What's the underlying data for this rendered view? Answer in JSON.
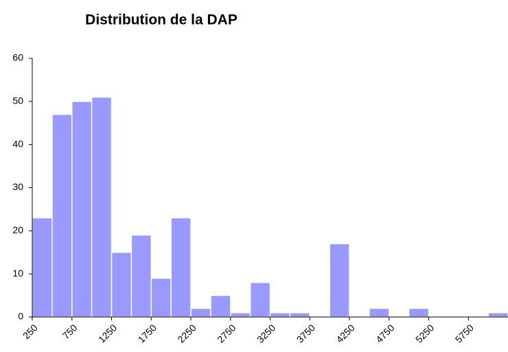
{
  "chart_data": {
    "type": "histogram",
    "title": "Distribution de la DAP",
    "bins": [
      250,
      500,
      750,
      1000,
      1250,
      1500,
      1750,
      2000,
      2250,
      2500,
      2750,
      3000,
      3250,
      3500,
      3750,
      4000,
      4250,
      4500,
      4750,
      5000,
      5250,
      5500,
      5750,
      6000,
      6250
    ],
    "values": [
      23,
      47,
      50,
      51,
      15,
      19,
      9,
      23,
      2,
      5,
      1,
      8,
      1,
      1,
      0,
      17,
      0,
      2,
      0,
      2,
      0,
      0,
      0,
      1
    ],
    "color": "#9999ff",
    "xlim": [
      250,
      6250
    ],
    "xticks": [
      250,
      750,
      1250,
      1750,
      2250,
      2750,
      3250,
      3750,
      4250,
      4750,
      5250,
      5750
    ],
    "ylim": [
      0,
      60
    ],
    "yticks": [
      0,
      10,
      20,
      30,
      40,
      50,
      60
    ],
    "grid": false
  }
}
